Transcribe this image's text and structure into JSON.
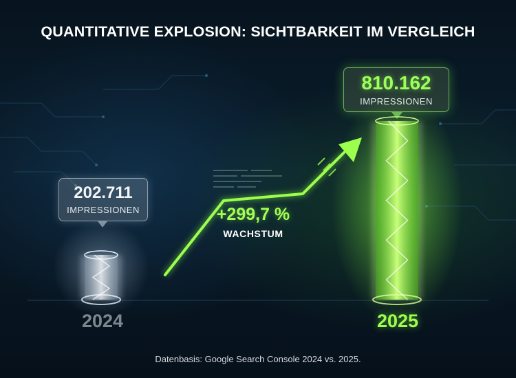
{
  "title": "QUANTITATIVE EXPLOSION: SICHTBARKEIT IM VERGLEICH",
  "chart_data": {
    "type": "bar",
    "categories": [
      "2024",
      "2025"
    ],
    "values": [
      202711,
      810162
    ],
    "value_labels": [
      "202.711",
      "810.162"
    ],
    "unit_label": "IMPRESSIONEN",
    "growth": {
      "value": "+299,7 %",
      "label": "WACHSTUM"
    },
    "colors": {
      "2024": "#cfd8e0",
      "2025": "#8cff3c",
      "arrow": "#8cff3c"
    },
    "grid": false,
    "legend": "none"
  },
  "footnote": "Datenbasis: Google Search Console 2024 vs. 2025."
}
